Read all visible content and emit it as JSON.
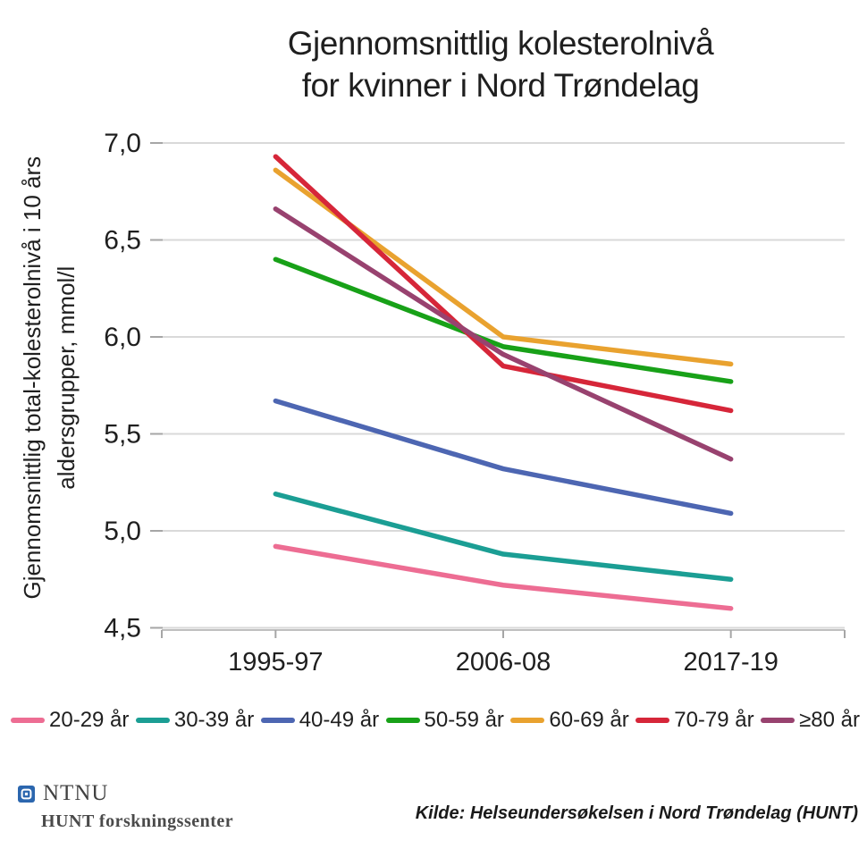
{
  "title": {
    "line1": "Gjennomsnittlig kolesterolnivå",
    "line2": "for kvinner i Nord Trøndelag"
  },
  "chart_data": {
    "type": "line",
    "title": "Gjennomsnittlig kolesterolnivå for kvinner i Nord Trøndelag",
    "categories": [
      "1995-97",
      "2006-08",
      "2017-19"
    ],
    "series": [
      {
        "name": "20-29 år",
        "color": "#ed6d93",
        "values": [
          4.92,
          4.72,
          4.6
        ]
      },
      {
        "name": "30-39 år",
        "color": "#1b9e94",
        "values": [
          5.19,
          4.88,
          4.75
        ]
      },
      {
        "name": "40-49 år",
        "color": "#4d66b2",
        "values": [
          5.67,
          5.32,
          5.09
        ]
      },
      {
        "name": "50-59 år",
        "color": "#18a118",
        "values": [
          6.4,
          5.95,
          5.77
        ]
      },
      {
        "name": "60-69 år",
        "color": "#e9a22f",
        "values": [
          6.86,
          6.0,
          5.86
        ]
      },
      {
        "name": "70-79 år",
        "color": "#d62639",
        "values": [
          6.93,
          5.85,
          5.62
        ]
      },
      {
        "name": "≥80 år",
        "color": "#98426f",
        "values": [
          6.66,
          5.91,
          5.37
        ]
      }
    ],
    "ylabel_lines": [
      "Gjennomsnittlig total-kolesterolnivå i 10 års",
      "aldersgrupper, mmol/l"
    ],
    "ylabel": "Gjennomsnittlig total-kolesterolnivå i 10 års aldersgrupper, mmol/l",
    "xlabel": "",
    "ylim": [
      4.5,
      7.0
    ],
    "ytick_step": 0.5,
    "ytick_labels": [
      "7,0",
      "6,5",
      "6,0",
      "5,5",
      "5,0",
      "4,5"
    ],
    "grid": "horizontal",
    "legend_position": "bottom"
  },
  "footer": {
    "ntnu_label": "NTNU",
    "hunt_label": "HUNT forskningssenter",
    "source": "Kilde: Helseundersøkelsen i Nord Trøndelag (HUNT)"
  },
  "colors": {
    "gridline": "#d9d9d9",
    "axis": "#bfbfbf",
    "tick": "#a6a6a6",
    "text": "#1f1f1f",
    "ntnu_blue": "#2b66ae"
  }
}
